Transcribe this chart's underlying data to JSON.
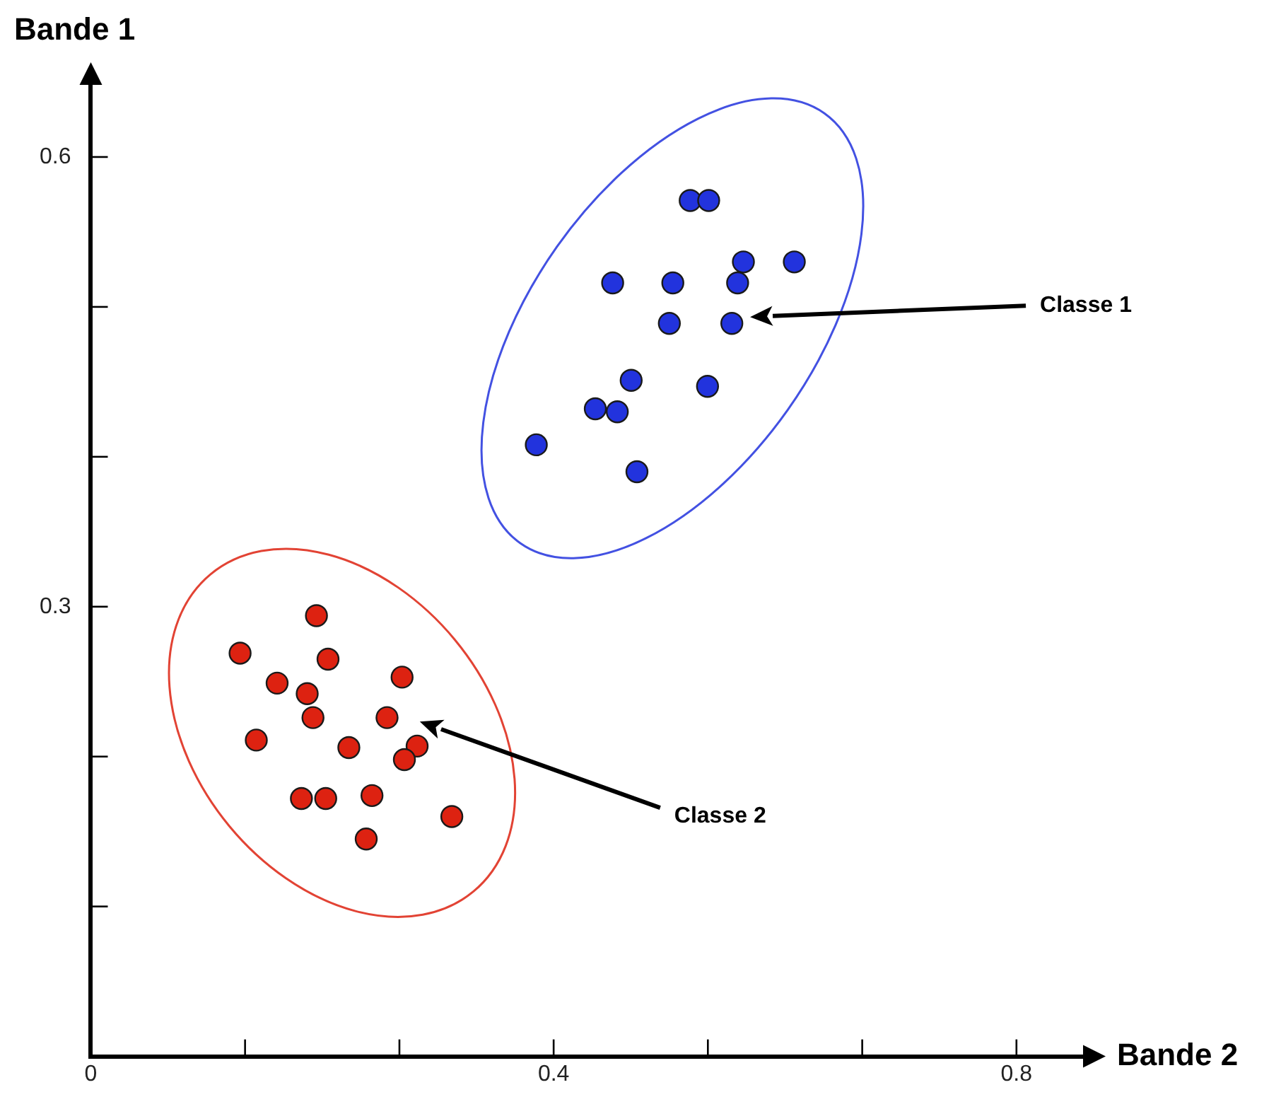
{
  "chart_data": {
    "type": "scatter",
    "xlabel": "Bande 2",
    "ylabel": "Bande 1",
    "xlim": [
      0,
      0.86
    ],
    "ylim": [
      0,
      0.65
    ],
    "xticks": [
      0,
      {
        "value": 0.1333,
        "label": null
      },
      {
        "value": 0.2667,
        "label": null
      },
      0.4,
      {
        "value": 0.5333,
        "label": null
      },
      {
        "value": 0.6667,
        "label": null
      },
      0.8
    ],
    "yticks": [
      {
        "value": 0,
        "label": null
      },
      {
        "value": 0.1,
        "label": null
      },
      {
        "value": 0.2,
        "label": null
      },
      0.3,
      {
        "value": 0.4,
        "label": null
      },
      {
        "value": 0.5,
        "label": null
      },
      0.6
    ],
    "grid": false,
    "legend": false,
    "marker": "circle",
    "annotations": [
      "Classe 1",
      "Classe 2"
    ],
    "series": [
      {
        "color": "#2233dd",
        "x": [
          0.518,
          0.534,
          0.564,
          0.608,
          0.451,
          0.503,
          0.559,
          0.5,
          0.554,
          0.467,
          0.533,
          0.436,
          0.455,
          0.385,
          0.472
        ],
        "values": [
          0.571,
          0.571,
          0.53,
          0.53,
          0.516,
          0.516,
          0.516,
          0.489,
          0.489,
          0.451,
          0.447,
          0.432,
          0.43,
          0.408,
          0.39
        ]
      },
      {
        "color": "#dd2211",
        "x": [
          0.195,
          0.129,
          0.205,
          0.161,
          0.269,
          0.187,
          0.192,
          0.256,
          0.143,
          0.223,
          0.282,
          0.271,
          0.182,
          0.203,
          0.243,
          0.312,
          0.238
        ],
        "values": [
          0.294,
          0.269,
          0.265,
          0.249,
          0.253,
          0.242,
          0.226,
          0.226,
          0.211,
          0.206,
          0.207,
          0.198,
          0.172,
          0.172,
          0.174,
          0.16,
          0.145
        ]
      }
    ]
  }
}
